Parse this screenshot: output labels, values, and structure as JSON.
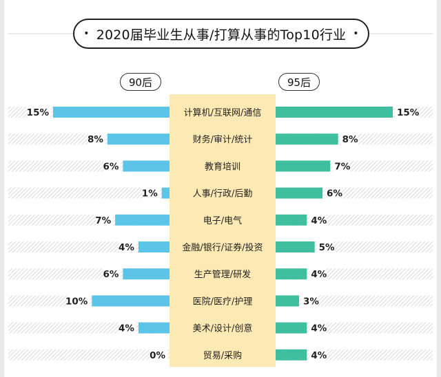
{
  "title": "2020届毕业生从事/打算从事的Top10行业",
  "title_bullet": "•",
  "groups": {
    "left": "90后",
    "right": "95后"
  },
  "colors": {
    "left_bar": "#5cc4e6",
    "right_bar": "#3fbf9f",
    "track_hatch": "#d0d0d0",
    "center_bg": "#fde9b3"
  },
  "chart_data": {
    "type": "bar",
    "orientation": "horizontal-butterfly",
    "title": "2020届毕业生从事/打算从事的Top10行业",
    "categories": [
      "计算机/互联网/通信",
      "财务/审计/统计",
      "教育培训",
      "人事/行政/后勤",
      "电子/电气",
      "金融/银行/证券/投资",
      "生产管理/研发",
      "医院/医疗/护理",
      "美术/设计/创意",
      "贸易/采购"
    ],
    "series": [
      {
        "name": "90后",
        "values": [
          15,
          8,
          6,
          1,
          7,
          4,
          6,
          10,
          4,
          0
        ]
      },
      {
        "name": "95后",
        "values": [
          15,
          8,
          7,
          6,
          4,
          5,
          4,
          3,
          4,
          4
        ]
      }
    ],
    "value_labels_left": [
      "15%",
      "8%",
      "6%",
      "1%",
      "7%",
      "4%",
      "6%",
      "10%",
      "4%",
      "0%"
    ],
    "value_labels_right": [
      "15%",
      "8%",
      "7%",
      "6%",
      "4%",
      "5%",
      "4%",
      "3%",
      "4%",
      "4%"
    ],
    "unit": "%",
    "xlim": [
      0,
      15
    ]
  }
}
